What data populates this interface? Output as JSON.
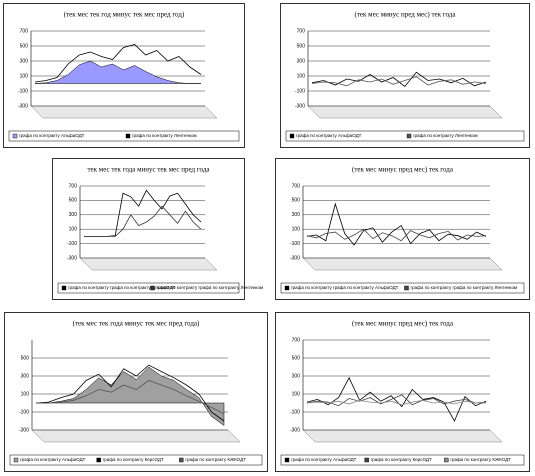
{
  "chart_data": [
    {
      "type": "line",
      "title": "(тек мес тек год минус тек мес пред год)",
      "ylim": [
        -300,
        700
      ],
      "yticks": [
        700,
        500,
        300,
        100,
        -100,
        -300
      ],
      "grid": true,
      "series": [
        {
          "name": "графа по контракту АльфаОДТ",
          "color": "#9999ff",
          "area": true,
          "values": [
            0,
            10,
            40,
            120,
            250,
            300,
            220,
            260,
            180,
            240,
            160,
            90,
            40,
            10,
            0,
            0
          ]
        },
        {
          "name": "графа по контракту Лентенком",
          "color": "#000000",
          "values": [
            20,
            40,
            80,
            260,
            380,
            420,
            360,
            320,
            480,
            520,
            380,
            440,
            300,
            360,
            220,
            120
          ]
        }
      ]
    },
    {
      "type": "line",
      "title": "(тек мес минус пред мес) тек года",
      "ylim": [
        -300,
        700
      ],
      "yticks": [
        700,
        500,
        300,
        100,
        -100,
        -300
      ],
      "grid": true,
      "series": [
        {
          "name": "графа по контракту АльфаОДТ",
          "color": "#000000",
          "values": [
            10,
            40,
            -20,
            60,
            30,
            120,
            20,
            80,
            -40,
            150,
            40,
            60,
            10,
            70,
            -30,
            20
          ]
        },
        {
          "name": "графа по контракту Лентенком",
          "color": "#555555",
          "values": [
            0,
            20,
            10,
            -30,
            50,
            20,
            60,
            -10,
            40,
            90,
            -20,
            30,
            50,
            -10,
            20,
            0
          ]
        }
      ]
    },
    {
      "type": "line",
      "title": "тек мес тек года минус тек мес пред года",
      "ylim": [
        -300,
        700
      ],
      "yticks": [
        700,
        500,
        300,
        100,
        -100,
        -300
      ],
      "grid": true,
      "series": [
        {
          "name": "графа по контракту графа по контракту АльфаОДТ",
          "color": "#000000",
          "values": [
            0,
            0,
            0,
            0,
            10,
            600,
            550,
            420,
            640,
            500,
            380,
            560,
            600,
            450,
            300,
            200
          ]
        },
        {
          "name": "графа по контракту графа по контракту Лентенком",
          "color": "#333333",
          "values": [
            0,
            0,
            0,
            0,
            0,
            100,
            300,
            150,
            200,
            280,
            420,
            300,
            180,
            350,
            200,
            100
          ]
        }
      ]
    },
    {
      "type": "line",
      "title": "(тек мес минус пред мес) тек года",
      "ylim": [
        -300,
        700
      ],
      "yticks": [
        700,
        500,
        300,
        100,
        -100,
        -300
      ],
      "grid": true,
      "series": [
        {
          "name": "графа по контракту графа по контракту АльфаОДТ",
          "color": "#000000",
          "values": [
            0,
            20,
            -60,
            450,
            40,
            -120,
            80,
            120,
            -80,
            60,
            150,
            -100,
            40,
            90,
            -60,
            30,
            10,
            -40,
            60,
            0
          ]
        },
        {
          "name": "графа по контракту графа по контракту Лентенком",
          "color": "#444444",
          "values": [
            10,
            -20,
            40,
            60,
            -40,
            20,
            100,
            -30,
            50,
            10,
            -60,
            80,
            20,
            -20,
            40,
            70,
            -50,
            20,
            0,
            10
          ]
        }
      ]
    },
    {
      "type": "line",
      "title": "(тек мес тек года минус тек мес пред года)",
      "ylim": [
        -300,
        700
      ],
      "yticks": [
        500,
        300,
        100,
        -100,
        -300
      ],
      "grid": true,
      "series": [
        {
          "name": "графа по контракту АльфаОДТ",
          "color": "#a0a0a0",
          "area": true,
          "values": [
            0,
            0,
            20,
            50,
            150,
            280,
            200,
            350,
            260,
            400,
            300,
            250,
            150,
            60,
            -150,
            -250
          ]
        },
        {
          "name": "графа по контракту КерсОДТ",
          "color": "#000000",
          "values": [
            0,
            10,
            60,
            100,
            250,
            320,
            180,
            380,
            300,
            420,
            350,
            280,
            200,
            100,
            -100,
            -200
          ]
        },
        {
          "name": "графа по контракту КЖКОДТ",
          "color": "#555555",
          "values": [
            0,
            0,
            10,
            30,
            80,
            150,
            120,
            200,
            150,
            250,
            200,
            150,
            80,
            20,
            -50,
            -120
          ]
        }
      ]
    },
    {
      "type": "line",
      "title": "(тек мес минус пред мес) тек года",
      "ylim": [
        -300,
        700
      ],
      "yticks": [
        700,
        500,
        300,
        100,
        -100,
        -300
      ],
      "grid": true,
      "series": [
        {
          "name": "графа по контракту АльфаОДТ",
          "color": "#000000",
          "values": [
            10,
            40,
            -20,
            60,
            280,
            30,
            120,
            20,
            80,
            -40,
            150,
            40,
            60,
            10,
            -200,
            70,
            -30,
            20
          ]
        },
        {
          "name": "графа по контракту КерсОДТ",
          "color": "#444444",
          "values": [
            0,
            20,
            10,
            -30,
            50,
            20,
            60,
            -10,
            40,
            90,
            -20,
            30,
            50,
            -10,
            20,
            40,
            0,
            10
          ]
        },
        {
          "name": "графа по контракту КЖКОДТ",
          "color": "#888888",
          "values": [
            0,
            10,
            0,
            20,
            -10,
            30,
            10,
            0,
            20,
            -20,
            10,
            30,
            0,
            10,
            -10,
            20,
            0,
            0
          ]
        }
      ]
    }
  ]
}
